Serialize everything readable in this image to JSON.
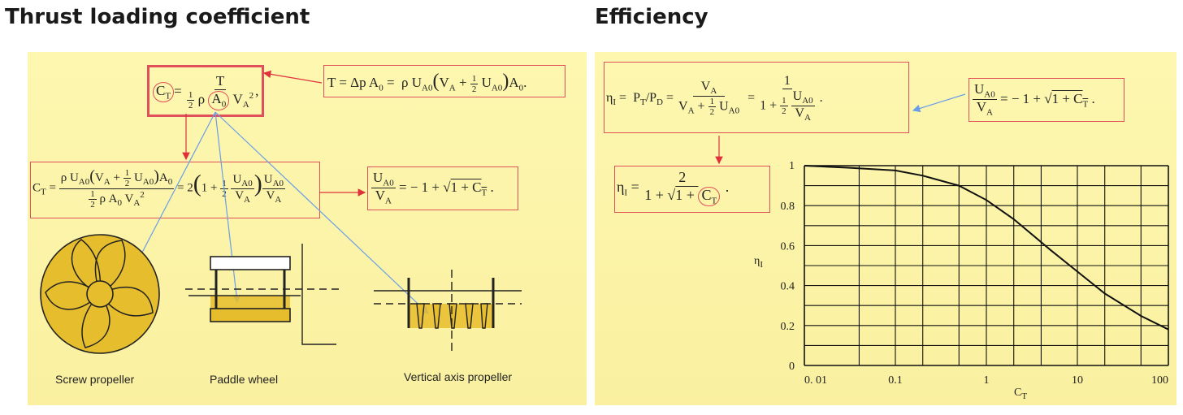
{
  "left": {
    "heading": "Thrust loading coefficient",
    "captions": {
      "screw": "Screw propeller",
      "paddle": "Paddle wheel",
      "vertical": "Vertical axis propeller"
    }
  },
  "right": {
    "heading": "Efficiency"
  },
  "chart_data": {
    "type": "line",
    "xlabel": "C_T",
    "ylabel": "η_I",
    "xscale": "log",
    "xlim": [
      0.01,
      100
    ],
    "ylim": [
      0,
      1
    ],
    "xticks": [
      "0. 01",
      "0.1",
      "1",
      "10",
      "100"
    ],
    "yticks": [
      "0",
      "0.2",
      "0.4",
      "0.6",
      "0.8",
      "1"
    ],
    "grid": true,
    "x": [
      0.01,
      0.03,
      0.1,
      0.2,
      0.5,
      1,
      2,
      5,
      10,
      20,
      50,
      100
    ],
    "y": [
      1.0,
      0.99,
      0.976,
      0.95,
      0.9,
      0.828,
      0.732,
      0.58,
      0.47,
      0.36,
      0.248,
      0.18
    ]
  }
}
